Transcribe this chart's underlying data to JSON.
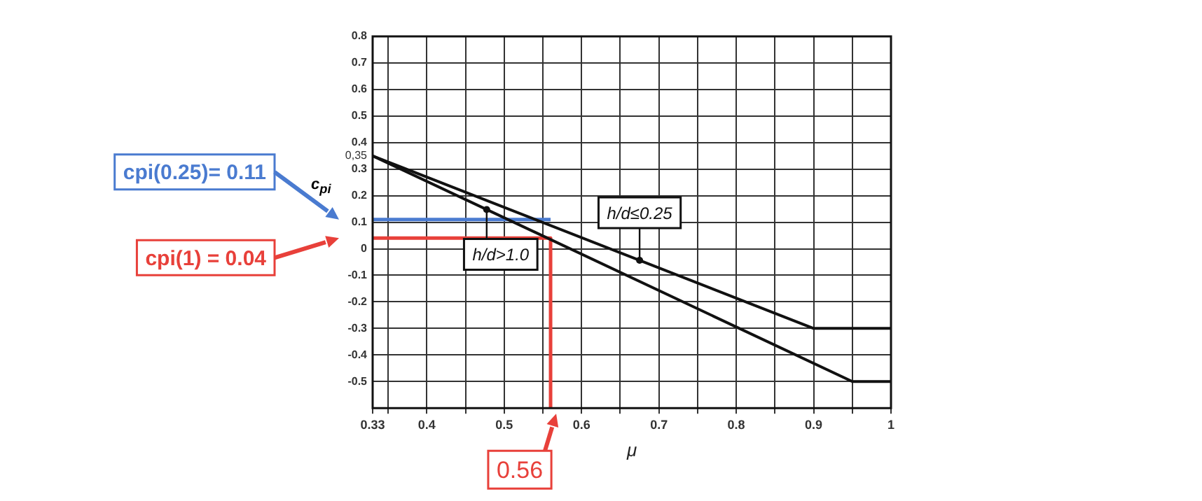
{
  "chart_data": {
    "type": "line",
    "xlabel": "μ",
    "ylabel": "c$_{pi}$",
    "xlim": [
      0.33,
      1
    ],
    "xticks": [
      0.33,
      {
        "value": 0.35,
        "label": null
      },
      0.4,
      {
        "value": 0.45,
        "label": null
      },
      0.5,
      {
        "value": 0.55,
        "label": null
      },
      0.6,
      {
        "value": 0.65,
        "label": null
      },
      0.7,
      {
        "value": 0.75,
        "label": null
      },
      0.8,
      {
        "value": 0.85,
        "label": null
      },
      0.9,
      {
        "value": 0.95,
        "label": null
      },
      1
    ],
    "ylim": [
      -0.6,
      0.8
    ],
    "yticks": [
      -0.5,
      -0.4,
      -0.3,
      -0.2,
      -0.1,
      0,
      0.1,
      0.2,
      0.3,
      {
        "value": 0.35,
        "label": "0,35"
      },
      0.4,
      0.5,
      0.6,
      0.7,
      0.8
    ],
    "grid": true,
    "legend": false,
    "marker": "none",
    "line_style": "solid",
    "series": [
      {
        "name": "h/d≤0.25",
        "color": "#111111",
        "x": [
          0.33,
          0.9,
          1
        ],
        "values": [
          0.35,
          -0.3,
          -0.3
        ]
      },
      {
        "name": "h/d>1.0",
        "color": "#111111",
        "x": [
          0.33,
          0.95,
          1
        ],
        "values": [
          0.35,
          -0.5,
          -0.5
        ]
      },
      {
        "color": "#4a7bd0",
        "x": [
          0.33,
          0.56
        ],
        "values": [
          0.11,
          0.11
        ]
      },
      {
        "color": "#e8403a",
        "x": [
          0.33,
          0.56,
          0.56
        ],
        "values": [
          0.04,
          0.04,
          -0.6
        ]
      }
    ],
    "annotations": [
      "cpi(0.25)= 0.11",
      "cpi(1) = 0.04",
      "0.56"
    ]
  }
}
